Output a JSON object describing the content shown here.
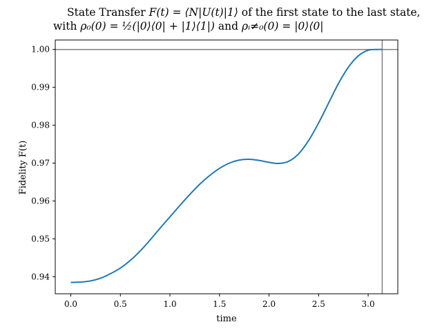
{
  "chart_data": {
    "type": "line",
    "title_parts": {
      "line1_pre": "State Transfer ",
      "line1_math": "F(t) = ⟨N|U(t)|1⟩",
      "line1_post": " of the first state to the last state,",
      "line2_pre": "with ",
      "line2_math1": "ρ₀(0) = ½(|0⟩⟨0| + |1⟩⟨1|)",
      "line2_mid": " and ",
      "line2_math2": "ρᵢ≠₀(0) = |0⟩⟨0|"
    },
    "xlabel": "time",
    "ylabel": "Fidelity F(t)",
    "xlim": [
      -0.157,
      3.299
    ],
    "ylim": [
      0.9355,
      1.0025
    ],
    "xticks": [
      0.0,
      0.5,
      1.0,
      1.5,
      2.0,
      2.5,
      3.0
    ],
    "xtick_labels": [
      "0.0",
      "0.5",
      "1.0",
      "1.5",
      "2.0",
      "2.5",
      "3.0"
    ],
    "yticks": [
      0.94,
      0.95,
      0.96,
      0.97,
      0.98,
      0.99,
      1.0
    ],
    "ytick_labels": [
      "0.94",
      "0.95",
      "0.96",
      "0.97",
      "0.98",
      "0.99",
      "1.00"
    ],
    "hline_y": 1.0,
    "vline_x": 3.1416,
    "line_color": "#1f77b4",
    "ref_line_color": "#808080",
    "series": [
      {
        "x": [
          0.0,
          0.1,
          0.2,
          0.3,
          0.4,
          0.5,
          0.6,
          0.7,
          0.8,
          0.9,
          1.0,
          1.1,
          1.2,
          1.3,
          1.4,
          1.5,
          1.6,
          1.7,
          1.8,
          1.9,
          2.0,
          2.1,
          2.2,
          2.3,
          2.4,
          2.5,
          2.6,
          2.7,
          2.8,
          2.9,
          3.0,
          3.1,
          3.1416
        ],
        "y": [
          0.9385,
          0.9386,
          0.9389,
          0.9396,
          0.9408,
          0.9423,
          0.9443,
          0.9468,
          0.9497,
          0.9528,
          0.9558,
          0.9588,
          0.9617,
          0.9644,
          0.9667,
          0.9686,
          0.97,
          0.9708,
          0.971,
          0.9707,
          0.9702,
          0.9699,
          0.9705,
          0.9725,
          0.976,
          0.9806,
          0.9858,
          0.991,
          0.9953,
          0.9983,
          0.9998,
          1.0,
          1.0
        ]
      }
    ]
  }
}
